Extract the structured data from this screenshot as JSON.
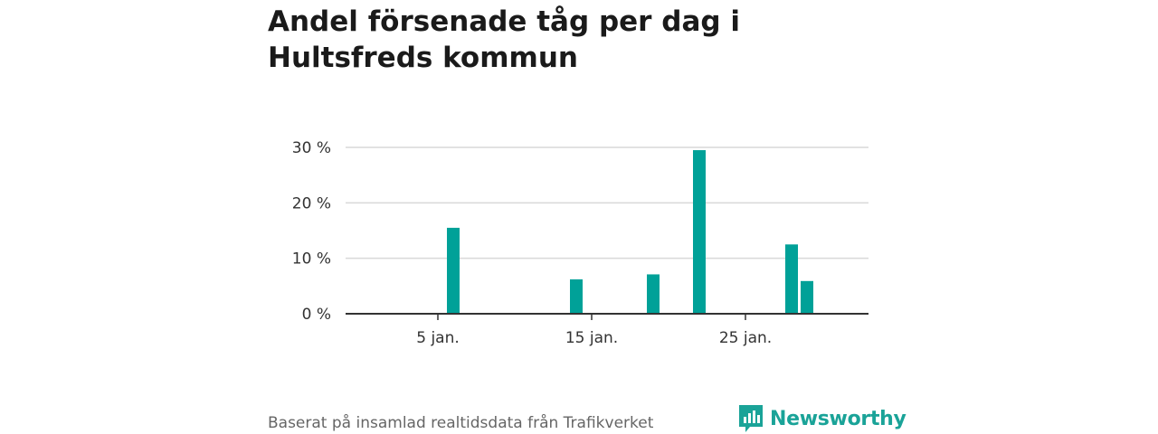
{
  "title": "Andel försenade tåg per dag i Hultsfreds kommun",
  "source": "Baserat på insamlad realtidsdata från Trafikverket",
  "brand": {
    "name": "Newsworthy",
    "color": "#1aa398"
  },
  "colors": {
    "bar": "#00a198",
    "grid": "#d9d9d9",
    "axis": "#333333"
  },
  "chart_data": {
    "type": "bar",
    "ylim": [
      0,
      30
    ],
    "yticks": [
      0,
      10,
      20,
      30
    ],
    "ytick_labels": [
      "0 %",
      "10 %",
      "20 %",
      "30 %"
    ],
    "xlim": [
      -1,
      33
    ],
    "xticks": [
      5,
      15,
      25
    ],
    "xtick_labels": [
      "5 jan.",
      "15 jan.",
      "25 jan."
    ],
    "grid": true,
    "series": [
      {
        "x": [
          6,
          14,
          19,
          22,
          28,
          29
        ],
        "values": [
          15.5,
          6.2,
          7.1,
          29.5,
          12.5,
          5.9
        ]
      }
    ]
  }
}
